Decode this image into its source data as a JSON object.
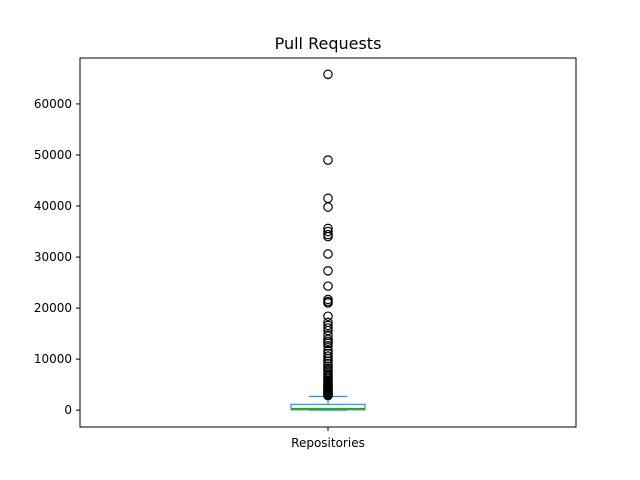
{
  "chart_data": {
    "type": "box",
    "title": "Pull Requests",
    "xlabel": "",
    "ylabel": "",
    "categories": [
      "Repositories"
    ],
    "ylim": [
      -3300,
      69000
    ],
    "yticks": [
      0,
      10000,
      20000,
      30000,
      40000,
      50000,
      60000
    ],
    "ytick_labels": [
      "0",
      "10000",
      "20000",
      "30000",
      "40000",
      "50000",
      "60000"
    ],
    "grid": false,
    "legend": "none",
    "box": {
      "whisker_low": 0,
      "q1": 60,
      "median": 300,
      "q3": 1150,
      "whisker_high": 2700
    },
    "outliers": [
      65800,
      49000,
      41500,
      39800,
      35600,
      35000,
      34400,
      34000,
      30600,
      27300,
      24300,
      21700,
      21300,
      21000,
      18400,
      17200,
      16600,
      16100,
      15600,
      14700,
      13900,
      13500,
      13100,
      12600,
      11700,
      11100,
      10600,
      10100,
      9600,
      9100,
      8600,
      8200,
      7800,
      7400,
      7100,
      6800,
      6500,
      6200,
      5900,
      5600,
      5300,
      5000,
      4700,
      4500,
      4300,
      4100,
      3900,
      3700,
      3500,
      3300,
      3100,
      2950,
      2850
    ],
    "colors": {
      "box": "#1f77b4",
      "median": "#2ca02c",
      "whisker": "#1f77b4",
      "outlier_edge": "#000000",
      "axes": "#000000"
    }
  }
}
